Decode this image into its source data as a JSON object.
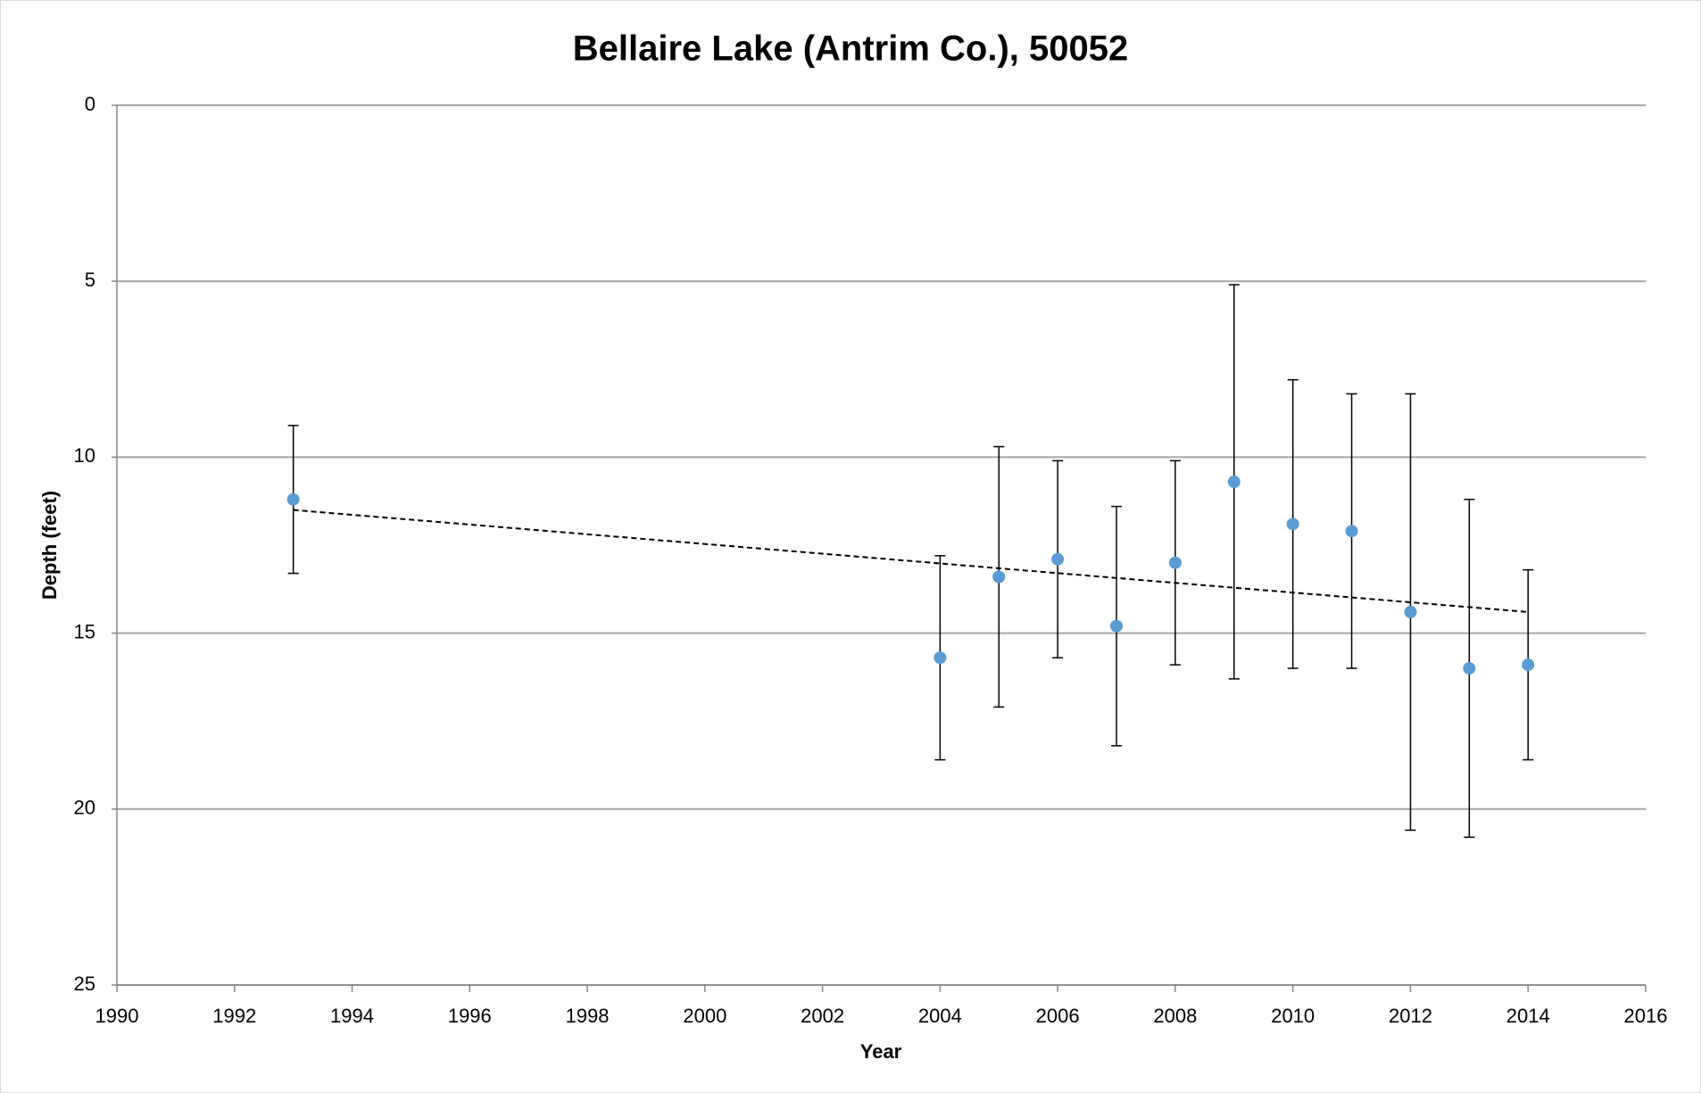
{
  "chart_data": {
    "type": "scatter",
    "title": "Bellaire Lake (Antrim Co.), 50052",
    "x_label": "Year",
    "y_label": "Depth (feet)",
    "series": [
      {
        "name": "Depth",
        "color": "#5b9bd5",
        "x": [
          1993,
          2004,
          2005,
          2006,
          2007,
          2008,
          2009,
          2010,
          2011,
          2012,
          2013,
          2014
        ],
        "values": [
          11.2,
          15.7,
          13.4,
          12.9,
          14.8,
          13.0,
          10.7,
          11.9,
          12.1,
          14.4,
          16.0,
          15.9
        ],
        "errors": [
          2.1,
          2.9,
          3.7,
          2.8,
          3.4,
          2.9,
          5.6,
          4.1,
          3.9,
          6.2,
          4.8,
          2.7
        ]
      }
    ],
    "trendline": {
      "x": [
        1993,
        2014
      ],
      "values": [
        11.5,
        14.4
      ],
      "color": "#000000"
    },
    "xlim": [
      1990,
      2016
    ],
    "xticks": [
      1990,
      1992,
      1994,
      1996,
      1998,
      2000,
      2002,
      2004,
      2006,
      2008,
      2010,
      2012,
      2014,
      2016
    ],
    "ylim": [
      0,
      25
    ],
    "yticks": [
      0,
      5,
      10,
      15,
      20,
      25
    ],
    "y_inverted": true,
    "grid": true
  }
}
